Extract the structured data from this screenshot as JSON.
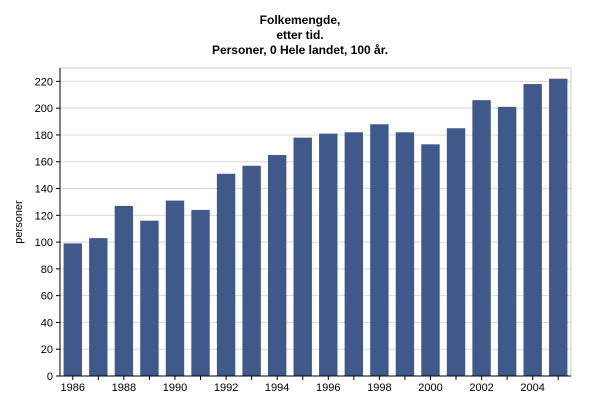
{
  "chart_data": {
    "type": "bar",
    "title_lines": [
      "Folkemengde,",
      "etter tid.",
      "Personer, 0 Hele landet, 100 år."
    ],
    "ylabel": "personer",
    "xlabel": "",
    "ylim": [
      0,
      230
    ],
    "y_ticks": [
      0,
      20,
      40,
      60,
      80,
      100,
      120,
      140,
      160,
      180,
      200,
      220
    ],
    "grid": true,
    "bar_color": "#3f5a8a",
    "categories": [
      "1986",
      "1987",
      "1988",
      "1989",
      "1990",
      "1991",
      "1992",
      "1993",
      "1994",
      "1995",
      "1996",
      "1997",
      "1998",
      "1999",
      "2000",
      "2001",
      "2002",
      "2003",
      "2004",
      "2005"
    ],
    "x_tick_labels": [
      "1986",
      "",
      "1988",
      "",
      "1990",
      "",
      "1992",
      "",
      "1994",
      "",
      "1996",
      "",
      "1998",
      "",
      "2000",
      "",
      "2002",
      "",
      "2004",
      ""
    ],
    "values": [
      99,
      103,
      127,
      116,
      131,
      124,
      151,
      157,
      165,
      178,
      181,
      182,
      188,
      182,
      173,
      185,
      206,
      201,
      218,
      222
    ]
  }
}
